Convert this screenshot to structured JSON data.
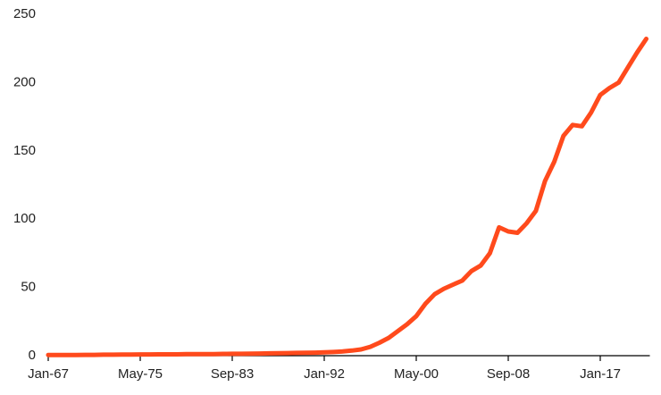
{
  "chart_data": {
    "type": "line",
    "color": "#ff4a1c",
    "categories": [
      "Jan-67",
      null,
      null,
      null,
      null,
      null,
      null,
      null,
      null,
      null,
      "May-75",
      null,
      null,
      null,
      null,
      null,
      null,
      null,
      null,
      null,
      "Sep-83",
      null,
      null,
      null,
      null,
      null,
      null,
      null,
      null,
      null,
      "Jan-92",
      null,
      null,
      null,
      null,
      null,
      null,
      null,
      null,
      null,
      "May-00",
      null,
      null,
      null,
      null,
      null,
      null,
      null,
      null,
      null,
      "Sep-08",
      null,
      null,
      null,
      null,
      null,
      null,
      null,
      null,
      null,
      "Jan-17",
      null,
      null,
      null,
      null,
      null
    ],
    "values": [
      0.5,
      0.5,
      0.5,
      0.5,
      0.6,
      0.6,
      0.7,
      0.7,
      0.8,
      0.8,
      0.9,
      0.9,
      1.0,
      1.0,
      1.0,
      1.1,
      1.1,
      1.2,
      1.2,
      1.3,
      1.4,
      1.4,
      1.5,
      1.6,
      1.7,
      1.8,
      1.9,
      2.0,
      2.1,
      2.2,
      2.4,
      2.7,
      3.1,
      3.7,
      4.6,
      6.5,
      9.5,
      13,
      18,
      23,
      29,
      38,
      45,
      49,
      52,
      55,
      62,
      66,
      75,
      94,
      91,
      90,
      97,
      106,
      128,
      142,
      161,
      169,
      168,
      178,
      191,
      196,
      200,
      211,
      222,
      232
    ],
    "ylim": [
      0,
      250
    ],
    "yticks": [
      0,
      50,
      100,
      150,
      200,
      250
    ]
  }
}
